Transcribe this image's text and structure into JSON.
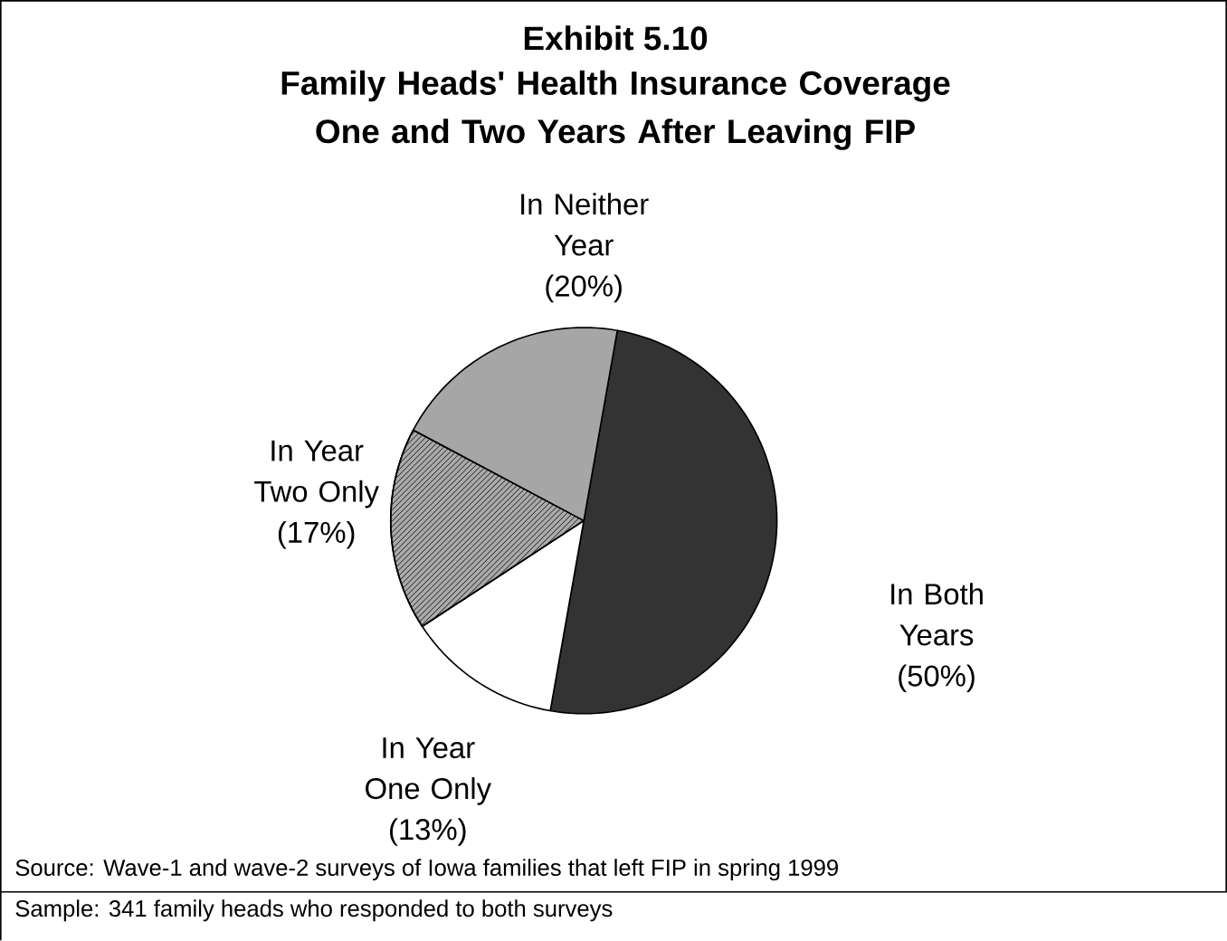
{
  "chart_data": {
    "type": "pie",
    "title": "Exhibit 5.10",
    "subtitle": "Family Heads' Health Insurance Coverage One and Two Years After Leaving FIP",
    "categories": [
      "In Both Years",
      "In Year One Only",
      "In Year Two Only",
      "In Neither Year"
    ],
    "values": [
      50,
      13,
      17,
      20
    ],
    "value_labels": [
      "(50%)",
      "(13%)",
      "(17%)",
      "(20%)"
    ],
    "colors": [
      "#333333",
      "#ffffff",
      "#aaaaaa",
      "#a6a6a6"
    ],
    "annotations": [
      "Source: Wave-1 and wave-2 surveys of Iowa families that left FIP in spring 1999",
      "Sample: 341 family heads who responded to both surveys"
    ]
  }
}
